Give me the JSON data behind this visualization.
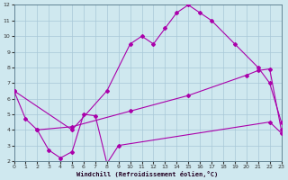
{
  "background_color": "#cfe8ef",
  "grid_color": "#a8c8d8",
  "line_color": "#aa00aa",
  "xlabel": "Windchill (Refroidissement éolien,°C)",
  "xlim": [
    0,
    23
  ],
  "ylim": [
    2,
    12
  ],
  "yticks": [
    2,
    3,
    4,
    5,
    6,
    7,
    8,
    9,
    10,
    11,
    12
  ],
  "xticks": [
    0,
    1,
    2,
    3,
    4,
    5,
    6,
    7,
    8,
    9,
    10,
    11,
    12,
    13,
    14,
    15,
    16,
    17,
    18,
    19,
    20,
    21,
    22,
    23
  ],
  "line1_x": [
    0,
    1,
    2,
    3,
    4,
    5,
    6,
    7,
    8,
    9,
    22,
    23
  ],
  "line1_y": [
    6.5,
    4.7,
    4.0,
    2.7,
    2.2,
    2.6,
    5.0,
    4.9,
    1.85,
    3.0,
    4.5,
    3.8
  ],
  "line2_x": [
    0,
    5,
    8,
    10,
    11,
    12,
    13,
    14,
    15,
    16,
    17,
    19,
    21,
    22,
    23
  ],
  "line2_y": [
    6.5,
    4.0,
    6.5,
    9.5,
    10.0,
    9.5,
    10.5,
    11.5,
    12.0,
    11.5,
    11.0,
    9.5,
    8.0,
    7.0,
    4.5
  ],
  "line3_x": [
    2,
    5,
    10,
    15,
    20,
    21,
    22,
    23
  ],
  "line3_y": [
    4.0,
    4.2,
    5.2,
    6.2,
    7.5,
    7.8,
    7.9,
    4.0
  ]
}
